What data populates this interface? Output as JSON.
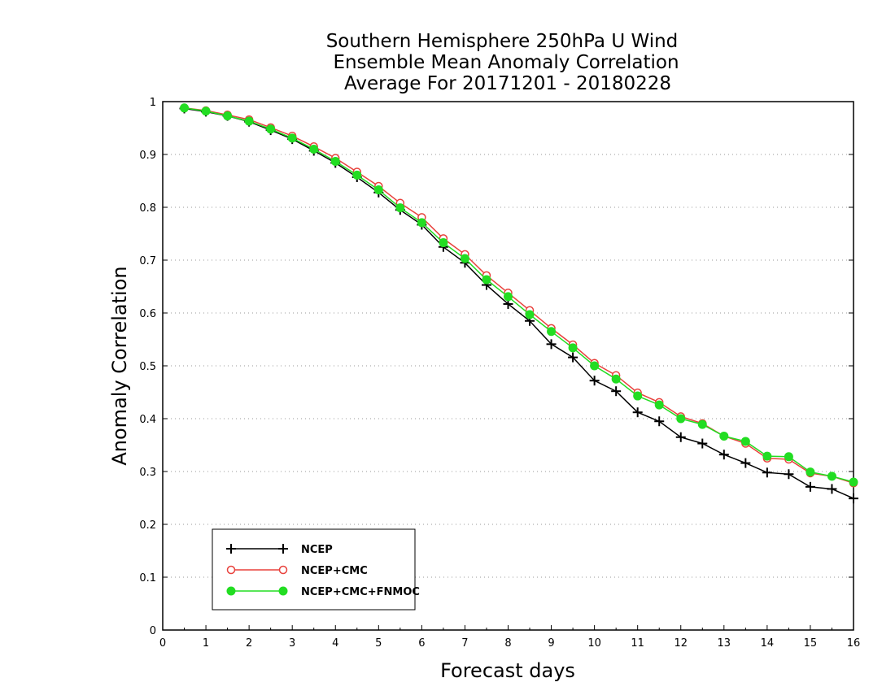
{
  "chart_data": {
    "type": "line",
    "title": [
      "Southern Hemisphere 250hPa U Wind",
      "Ensemble Mean Anomaly Correlation",
      "Average For 20171201 - 20180228"
    ],
    "xlabel": "Forecast days",
    "ylabel": "Anomaly Correlation",
    "xlim": [
      0,
      16
    ],
    "ylim": [
      0,
      1
    ],
    "xticks": [
      "0",
      "1",
      "2",
      "3",
      "4",
      "5",
      "6",
      "7",
      "8",
      "9",
      "10",
      "11",
      "12",
      "13",
      "14",
      "15",
      "16"
    ],
    "yticks": [
      "0",
      "0.1",
      "0.2",
      "0.3",
      "0.4",
      "0.5",
      "0.6",
      "0.7",
      "0.8",
      "0.9",
      "1"
    ],
    "grid": "horizontal dotted",
    "legend_position": "bottom-left",
    "x": [
      0.5,
      1,
      1.5,
      2,
      2.5,
      3,
      3.5,
      4,
      4.5,
      5,
      5.5,
      6,
      6.5,
      7,
      7.5,
      8,
      8.5,
      9,
      9.5,
      10,
      10.5,
      11,
      11.5,
      12,
      12.5,
      13,
      13.5,
      14,
      14.5,
      15,
      15.5,
      16
    ],
    "series": [
      {
        "name": "NCEP",
        "color": "#000000",
        "marker": "plus",
        "values": [
          0.987,
          0.981,
          0.973,
          0.962,
          0.946,
          0.929,
          0.907,
          0.884,
          0.857,
          0.828,
          0.795,
          0.767,
          0.725,
          0.695,
          0.653,
          0.617,
          0.585,
          0.541,
          0.516,
          0.472,
          0.452,
          0.412,
          0.395,
          0.365,
          0.353,
          0.332,
          0.316,
          0.298,
          0.295,
          0.271,
          0.267,
          0.249
        ]
      },
      {
        "name": "NCEP+CMC",
        "color": "#e8413c",
        "marker": "open-circle",
        "values": [
          0.988,
          0.983,
          0.975,
          0.966,
          0.951,
          0.935,
          0.915,
          0.893,
          0.867,
          0.84,
          0.808,
          0.781,
          0.741,
          0.711,
          0.671,
          0.638,
          0.605,
          0.571,
          0.54,
          0.505,
          0.482,
          0.449,
          0.431,
          0.404,
          0.391,
          0.367,
          0.353,
          0.325,
          0.323,
          0.297,
          0.291,
          0.278
        ]
      },
      {
        "name": "NCEP+CMC+FNMOC",
        "color": "#22dd22",
        "marker": "filled-circle",
        "values": [
          0.988,
          0.982,
          0.973,
          0.963,
          0.948,
          0.931,
          0.91,
          0.887,
          0.861,
          0.833,
          0.799,
          0.771,
          0.733,
          0.703,
          0.663,
          0.631,
          0.597,
          0.565,
          0.534,
          0.5,
          0.475,
          0.443,
          0.426,
          0.4,
          0.389,
          0.367,
          0.357,
          0.329,
          0.328,
          0.299,
          0.291,
          0.28
        ]
      }
    ]
  }
}
